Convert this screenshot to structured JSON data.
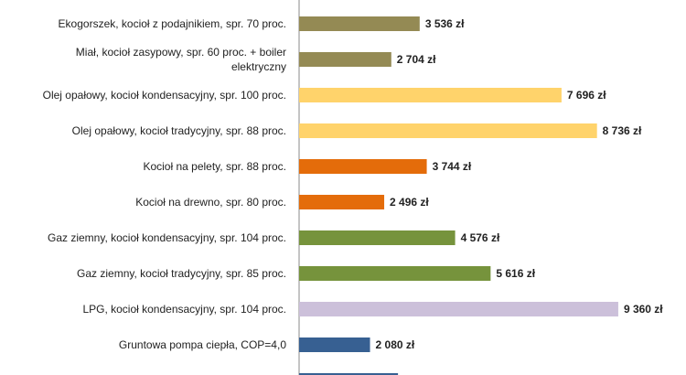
{
  "chart_data": {
    "type": "bar",
    "orientation": "horizontal",
    "categories": [
      "Ekogorszek, kocioł z podajnikiem, spr. 70 proc.",
      "Miał, kocioł zasypowy, spr. 60 proc. + boiler elektryczny",
      "Olej opałowy, kocioł kondensacyjny, spr. 100 proc.",
      "Olej opałowy, kocioł tradycyjny, spr. 88 proc.",
      "Kocioł na pelety, spr. 88 proc.",
      "Kocioł na drewno, spr. 80 proc.",
      "Gaz ziemny, kocioł kondensacyjny, spr. 104 proc.",
      "Gaz ziemny, kocioł tradycyjny, spr. 85 proc.",
      "LPG, kocioł kondensacyjny, spr. 104 proc.",
      "Gruntowa pompa ciepła, COP=4,0"
    ],
    "category_lines": [
      [
        "Ekogorszek, kocioł z podajnikiem, spr. 70 proc."
      ],
      [
        "Miał, kocioł zasypowy, spr. 60 proc. + boiler",
        "elektryczny"
      ],
      [
        "Olej opałowy, kocioł kondensacyjny, spr. 100 proc."
      ],
      [
        "Olej opałowy, kocioł tradycyjny, spr. 88 proc."
      ],
      [
        "Kocioł na pelety, spr. 88 proc."
      ],
      [
        "Kocioł na drewno, spr. 80 proc."
      ],
      [
        "Gaz ziemny, kocioł kondensacyjny, spr. 104 proc."
      ],
      [
        "Gaz ziemny, kocioł tradycyjny, spr. 85 proc."
      ],
      [
        "LPG, kocioł kondensacyjny, spr. 104 proc."
      ],
      [
        "Gruntowa pompa ciepła, COP=4,0"
      ]
    ],
    "values": [
      3536,
      2704,
      7696,
      8736,
      3744,
      2496,
      4576,
      5616,
      9360,
      2080
    ],
    "value_labels": [
      "3 536 zł",
      "2 704 zł",
      "7 696 zł",
      "8 736 zł",
      "3 744 zł",
      "2 496 zł",
      "4 576 zł",
      "5 616 zł",
      "9 360 zł",
      "2 080 zł"
    ],
    "colors": [
      "#948a54",
      "#948a54",
      "#ffd36b",
      "#ffd36b",
      "#e46c0a",
      "#e46c0a",
      "#76933c",
      "#76933c",
      "#ccc0da",
      "#376092"
    ],
    "partial_bar": {
      "value": 2900,
      "color": "#376092"
    },
    "xlim": [
      0,
      9360
    ],
    "grid": false,
    "axis_color": "#888888"
  }
}
